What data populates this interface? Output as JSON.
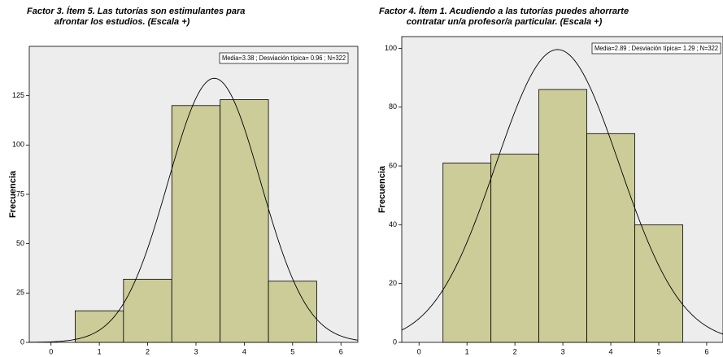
{
  "chart_data": [
    {
      "type": "histogram",
      "title": [
        "Factor 3. Ítem 5. Las tutorías son estimulantes para",
        "afrontar los estudios. (Escala +)"
      ],
      "y_label": "Frecuencia",
      "bins": [
        0.5,
        1.5,
        2.5,
        3.5,
        4.5,
        5.5
      ],
      "values": [
        16,
        32,
        120,
        123,
        31
      ],
      "color": "#cccc99",
      "xlim": [
        -0.45,
        6.35
      ],
      "xticks": [
        0,
        1,
        2,
        3,
        4,
        5,
        6
      ],
      "ylim": [
        0,
        150
      ],
      "yticks": [
        0,
        25,
        50,
        75,
        100,
        125
      ],
      "stats": {
        "mean": 3.38,
        "sd": 0.96,
        "n": 322,
        "label": "Media=3.38 ; Desviación típica= 0.96 ; N=322"
      }
    },
    {
      "type": "histogram",
      "title": [
        "Factor 4. Ítem 1. Acudiendo a las tutorías puedes ahorrarte",
        "contratar un/a profesor/a particular. (Escala +)"
      ],
      "y_label": "Frecuencia",
      "bins": [
        0.5,
        1.5,
        2.5,
        3.5,
        4.5,
        5.5
      ],
      "values": [
        61,
        64,
        86,
        71,
        40
      ],
      "color": "#cccc99",
      "xlim": [
        -0.36,
        6.34
      ],
      "xticks": [
        0,
        1,
        2,
        3,
        4,
        5,
        6
      ],
      "ylim": [
        0,
        104
      ],
      "yticks": [
        0,
        20,
        40,
        60,
        80,
        100
      ],
      "stats": {
        "mean": 2.89,
        "sd": 1.29,
        "n": 322,
        "label": "Media=2.89 ; Desviación típica= 1.29 ; N=322"
      }
    }
  ]
}
